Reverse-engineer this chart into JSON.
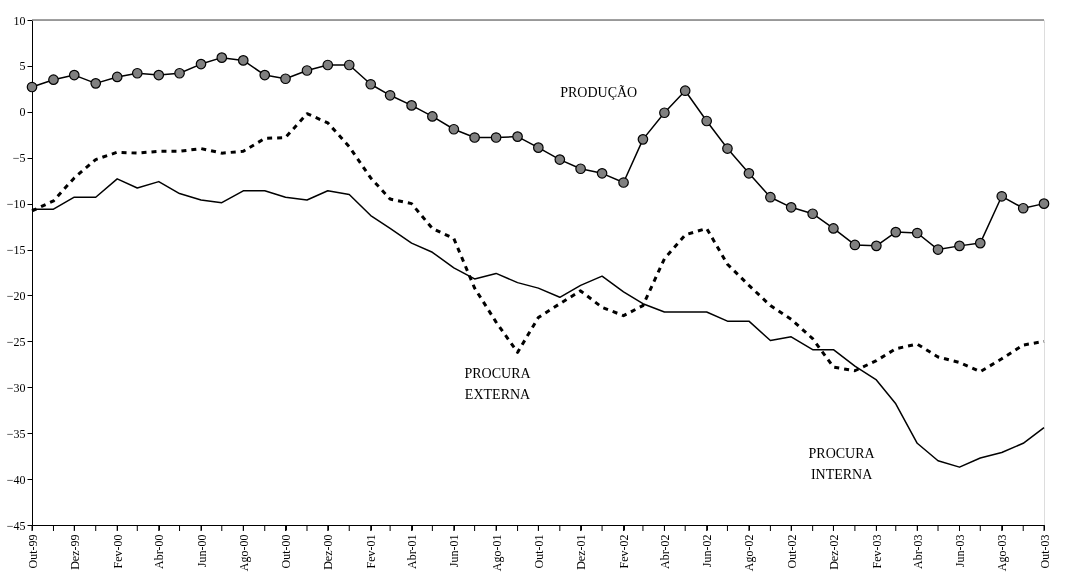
{
  "chart_data": {
    "type": "line",
    "x": [
      "1999-10",
      "1999-11",
      "1999-12",
      "2000-01",
      "2000-02",
      "2000-03",
      "2000-04",
      "2000-05",
      "2000-06",
      "2000-07",
      "2000-08",
      "2000-09",
      "2000-10",
      "2000-11",
      "2000-12",
      "2001-01",
      "2001-02",
      "2001-03",
      "2001-04",
      "2001-05",
      "2001-06",
      "2001-07",
      "2001-08",
      "2001-09",
      "2001-10",
      "2001-11",
      "2001-12",
      "2002-01",
      "2002-02",
      "2002-03",
      "2002-04",
      "2002-05",
      "2002-06",
      "2002-07",
      "2002-08",
      "2002-09",
      "2002-10",
      "2002-11",
      "2002-12",
      "2003-01",
      "2003-02",
      "2003-03",
      "2003-04",
      "2003-05",
      "2003-06",
      "2003-07",
      "2003-08",
      "2003-09",
      "2003-10"
    ],
    "series": [
      {
        "name": "PRODUÇÃO",
        "color": "#000000",
        "marker": "circle",
        "line_style": "solid",
        "values": [
          2.7,
          3.5,
          4.0,
          3.1,
          3.8,
          4.2,
          4.0,
          4.2,
          5.2,
          5.9,
          5.6,
          4.0,
          3.6,
          4.5,
          5.1,
          5.1,
          3.0,
          1.8,
          0.7,
          -0.5,
          -1.9,
          -2.8,
          -2.8,
          -2.7,
          -3.9,
          -5.2,
          -6.2,
          -6.7,
          -7.7,
          -3.0,
          -0.1,
          2.3,
          -1.0,
          -4.0,
          -6.7,
          -9.3,
          -10.4,
          -11.1,
          -12.7,
          -14.5,
          -14.6,
          -13.1,
          -13.2,
          -15.0,
          -14.6,
          -14.3,
          -9.2,
          -10.5,
          -10.0
        ]
      },
      {
        "name": "PROCURA\nEXTERNA",
        "color": "#000000",
        "marker": "none",
        "line_style": "dashed",
        "values": [
          -10.8,
          -9.7,
          -7.2,
          -5.2,
          -4.4,
          -4.5,
          -4.3,
          -4.3,
          -4.0,
          -4.5,
          -4.3,
          -2.9,
          -2.8,
          -0.2,
          -1.2,
          -3.8,
          -7.2,
          -9.5,
          -10.0,
          -12.7,
          -13.8,
          -19.2,
          -22.9,
          -26.2,
          -22.4,
          -20.9,
          -19.5,
          -21.3,
          -22.2,
          -21.1,
          -16.0,
          -13.4,
          -12.7,
          -16.6,
          -18.9,
          -21.1,
          -22.6,
          -24.7,
          -27.8,
          -28.2,
          -27.1,
          -25.8,
          -25.3,
          -26.7,
          -27.3,
          -28.3,
          -26.9,
          -25.4,
          -25.0
        ]
      },
      {
        "name": "PROCURA\nINTERNA",
        "color": "#000000",
        "marker": "none",
        "line_style": "solid",
        "values": [
          -10.6,
          -10.6,
          -9.3,
          -9.3,
          -7.3,
          -8.3,
          -7.6,
          -8.9,
          -9.6,
          -9.9,
          -8.6,
          -8.6,
          -9.3,
          -9.6,
          -8.6,
          -9.0,
          -11.3,
          -12.7,
          -14.3,
          -15.3,
          -17.0,
          -18.2,
          -17.6,
          -18.6,
          -19.2,
          -20.2,
          -18.9,
          -17.9,
          -19.6,
          -20.9,
          -21.8,
          -21.8,
          -21.8,
          -22.8,
          -22.8,
          -24.9,
          -24.5,
          -25.9,
          -25.9,
          -27.7,
          -29.2,
          -31.8,
          -36.1,
          -38.0,
          -38.7,
          -37.7,
          -37.1,
          -36.1,
          -34.4
        ]
      }
    ],
    "ylim": [
      -45,
      10
    ],
    "yticks": [
      -45,
      -40,
      -35,
      -30,
      -25,
      -20,
      -15,
      -10,
      -5,
      0,
      5,
      10
    ],
    "xlim": [
      "1999-10",
      "2003-10"
    ],
    "xticks": [
      {
        "value": "1999-10",
        "label": "Out-99"
      },
      {
        "value": "1999-11",
        "label": null
      },
      {
        "value": "1999-12",
        "label": "Dez-99"
      },
      {
        "value": "2000-01",
        "label": null
      },
      {
        "value": "2000-02",
        "label": "Fev-00"
      },
      {
        "value": "2000-03",
        "label": null
      },
      {
        "value": "2000-04",
        "label": "Abr-00"
      },
      {
        "value": "2000-05",
        "label": null
      },
      {
        "value": "2000-06",
        "label": "Jun-00"
      },
      {
        "value": "2000-07",
        "label": null
      },
      {
        "value": "2000-08",
        "label": "Ago-00"
      },
      {
        "value": "2000-09",
        "label": null
      },
      {
        "value": "2000-10",
        "label": "Out-00"
      },
      {
        "value": "2000-11",
        "label": null
      },
      {
        "value": "2000-12",
        "label": "Dez-00"
      },
      {
        "value": "2001-01",
        "label": null
      },
      {
        "value": "2001-02",
        "label": "Fev-01"
      },
      {
        "value": "2001-03",
        "label": null
      },
      {
        "value": "2001-04",
        "label": "Abr-01"
      },
      {
        "value": "2001-05",
        "label": null
      },
      {
        "value": "2001-06",
        "label": "Jun-01"
      },
      {
        "value": "2001-07",
        "label": null
      },
      {
        "value": "2001-08",
        "label": "Ago-01"
      },
      {
        "value": "2001-09",
        "label": null
      },
      {
        "value": "2001-10",
        "label": "Out-01"
      },
      {
        "value": "2001-11",
        "label": null
      },
      {
        "value": "2001-12",
        "label": "Dez-01"
      },
      {
        "value": "2002-01",
        "label": null
      },
      {
        "value": "2002-02",
        "label": "Fev-02"
      },
      {
        "value": "2002-03",
        "label": null
      },
      {
        "value": "2002-04",
        "label": "Abr-02"
      },
      {
        "value": "2002-05",
        "label": null
      },
      {
        "value": "2002-06",
        "label": "Jun-02"
      },
      {
        "value": "2002-07",
        "label": null
      },
      {
        "value": "2002-08",
        "label": "Ago-02"
      },
      {
        "value": "2002-09",
        "label": null
      },
      {
        "value": "2002-10",
        "label": "Out-02"
      },
      {
        "value": "2002-11",
        "label": null
      },
      {
        "value": "2002-12",
        "label": "Dez-02"
      },
      {
        "value": "2003-01",
        "label": null
      },
      {
        "value": "2003-02",
        "label": "Fev-03"
      },
      {
        "value": "2003-03",
        "label": null
      },
      {
        "value": "2003-04",
        "label": "Abr-03"
      },
      {
        "value": "2003-05",
        "label": null
      },
      {
        "value": "2003-06",
        "label": "Jun-03"
      },
      {
        "value": "2003-07",
        "label": null
      },
      {
        "value": "2003-08",
        "label": "Ago-03"
      },
      {
        "value": "2003-09",
        "label": null
      },
      {
        "value": "2003-10",
        "label": "Out-03"
      }
    ],
    "grid": false
  }
}
